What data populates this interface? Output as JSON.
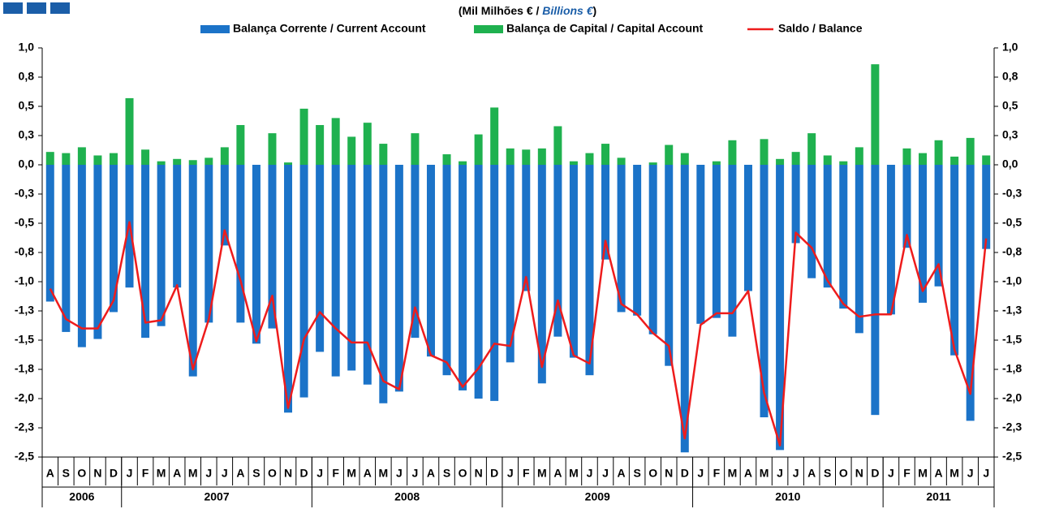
{
  "chart_data": {
    "type": "bar",
    "subtitle": [
      "(Mil Milhões € / ",
      "Billions €",
      ")"
    ],
    "categories": [
      "A",
      "S",
      "O",
      "N",
      "D",
      "J",
      "F",
      "M",
      "A",
      "M",
      "J",
      "J",
      "A",
      "S",
      "O",
      "N",
      "D",
      "J",
      "F",
      "M",
      "A",
      "M",
      "J",
      "J",
      "A",
      "S",
      "O",
      "N",
      "D",
      "J",
      "F",
      "M",
      "A",
      "M",
      "J",
      "J",
      "A",
      "S",
      "O",
      "N",
      "D",
      "J",
      "F",
      "M",
      "A",
      "M",
      "J",
      "J",
      "A",
      "S",
      "O",
      "N",
      "D",
      "J",
      "F",
      "M",
      "A",
      "M",
      "J",
      "J"
    ],
    "years": [
      "2006",
      "2007",
      "2008",
      "2009",
      "2010",
      "2011"
    ],
    "ylim": [
      -2.5,
      1.0
    ],
    "yticks": [
      {
        "value": 1.0,
        "label": "1,0"
      },
      {
        "value": 0.75,
        "label": "0,8"
      },
      {
        "value": 0.5,
        "label": "0,5"
      },
      {
        "value": 0.25,
        "label": "0,3"
      },
      {
        "value": 0.0,
        "label": "0,0"
      },
      {
        "value": -0.25,
        "label": "-0,3"
      },
      {
        "value": -0.5,
        "label": "-0,5"
      },
      {
        "value": -0.75,
        "label": "-0,8"
      },
      {
        "value": -1.0,
        "label": "-1,0"
      },
      {
        "value": -1.25,
        "label": "-1,3"
      },
      {
        "value": -1.5,
        "label": "-1,5"
      },
      {
        "value": -1.75,
        "label": "-1,8"
      },
      {
        "value": -2.0,
        "label": "-2,0"
      },
      {
        "value": -2.25,
        "label": "-2,3"
      },
      {
        "value": -2.5,
        "label": "-2,5"
      }
    ],
    "series": [
      {
        "name": "Balança Corrente / Current Account",
        "color": "#1b73c8",
        "kind": "bar",
        "values": [
          -1.17,
          -1.43,
          -1.56,
          -1.49,
          -1.26,
          -1.05,
          -1.48,
          -1.38,
          -1.05,
          -1.81,
          -1.35,
          -0.69,
          -1.35,
          -1.53,
          -1.4,
          -2.12,
          -1.99,
          -1.6,
          -1.81,
          -1.76,
          -1.88,
          -2.04,
          -1.94,
          -1.48,
          -1.64,
          -1.8,
          -1.93,
          -2.0,
          -2.02,
          -1.69,
          -1.08,
          -1.87,
          -1.47,
          -1.65,
          -1.8,
          -0.81,
          -1.26,
          -1.29,
          -1.45,
          -1.72,
          -2.46,
          -1.36,
          -1.31,
          -1.47,
          -1.08,
          -2.16,
          -2.44,
          -0.67,
          -0.97,
          -1.05,
          -1.23,
          -1.44,
          -2.14,
          -1.28,
          -0.71,
          -1.18,
          -1.04,
          -1.63,
          -2.19,
          -0.72
        ]
      },
      {
        "name": "Balança de Capital / Capital Account",
        "color": "#1fb14f",
        "kind": "bar",
        "values": [
          0.11,
          0.1,
          0.15,
          0.08,
          0.1,
          0.57,
          0.13,
          0.03,
          0.05,
          0.04,
          0.06,
          0.15,
          0.34,
          0.0,
          0.27,
          0.02,
          0.48,
          0.34,
          0.4,
          0.24,
          0.36,
          0.18,
          0.0,
          0.27,
          0.0,
          0.09,
          0.03,
          0.26,
          0.49,
          0.14,
          0.13,
          0.14,
          0.33,
          0.03,
          0.1,
          0.18,
          0.06,
          0.0,
          0.02,
          0.17,
          0.1,
          0.0,
          0.03,
          0.21,
          0.0,
          0.22,
          0.05,
          0.11,
          0.27,
          0.08,
          0.03,
          0.15,
          0.86,
          0.0,
          0.14,
          0.1,
          0.21,
          0.07,
          0.23,
          0.08
        ]
      },
      {
        "name": "Saldo / Balance",
        "color": "#ee1c1c",
        "kind": "line",
        "values": [
          -1.06,
          -1.32,
          -1.4,
          -1.4,
          -1.16,
          -0.49,
          -1.35,
          -1.33,
          -1.03,
          -1.75,
          -1.32,
          -0.56,
          -0.99,
          -1.51,
          -1.12,
          -2.08,
          -1.49,
          -1.26,
          -1.4,
          -1.52,
          -1.52,
          -1.85,
          -1.92,
          -1.22,
          -1.63,
          -1.69,
          -1.9,
          -1.74,
          -1.53,
          -1.55,
          -0.96,
          -1.73,
          -1.16,
          -1.63,
          -1.7,
          -0.65,
          -1.19,
          -1.28,
          -1.44,
          -1.55,
          -2.34,
          -1.37,
          -1.27,
          -1.27,
          -1.08,
          -1.95,
          -2.4,
          -0.58,
          -0.71,
          -0.99,
          -1.19,
          -1.3,
          -1.28,
          -1.28,
          -0.6,
          -1.08,
          -0.85,
          -1.58,
          -1.96,
          -0.63
        ]
      }
    ]
  }
}
